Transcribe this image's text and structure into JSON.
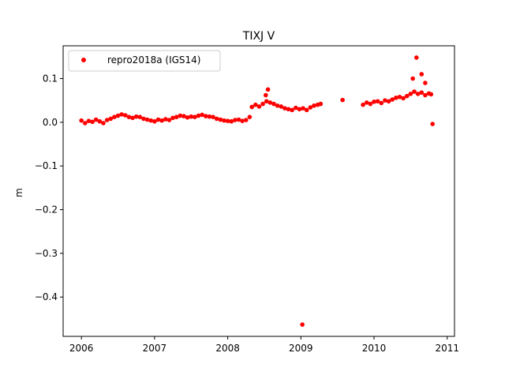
{
  "chart_data": {
    "type": "scatter",
    "title": "TIXJ V",
    "xlabel": "",
    "ylabel": "m",
    "xlim": [
      2005.75,
      2011.1
    ],
    "ylim": [
      -0.49,
      0.175
    ],
    "xticks": [
      2006,
      2007,
      2008,
      2009,
      2010,
      2011
    ],
    "xtick_labels": [
      "2006",
      "2007",
      "2008",
      "2009",
      "2010",
      "2011"
    ],
    "yticks": [
      0.1,
      0.0,
      -0.1,
      -0.2,
      -0.3,
      -0.4
    ],
    "ytick_labels": [
      "0.1",
      "0.0",
      "−0.1",
      "−0.2",
      "−0.3",
      "−0.4"
    ],
    "grid": false,
    "legend_position": "upper-left",
    "series": [
      {
        "name": "repro2018a (IGS14)",
        "color": "#ff0000",
        "marker": "circle",
        "points": [
          [
            2006.0,
            0.004
          ],
          [
            2006.05,
            -0.002
          ],
          [
            2006.1,
            0.003
          ],
          [
            2006.15,
            0.001
          ],
          [
            2006.2,
            0.006
          ],
          [
            2006.25,
            0.002
          ],
          [
            2006.3,
            -0.002
          ],
          [
            2006.35,
            0.005
          ],
          [
            2006.4,
            0.008
          ],
          [
            2006.45,
            0.012
          ],
          [
            2006.5,
            0.015
          ],
          [
            2006.55,
            0.018
          ],
          [
            2006.6,
            0.016
          ],
          [
            2006.65,
            0.012
          ],
          [
            2006.7,
            0.01
          ],
          [
            2006.75,
            0.013
          ],
          [
            2006.8,
            0.012
          ],
          [
            2006.85,
            0.008
          ],
          [
            2006.9,
            0.006
          ],
          [
            2006.95,
            0.004
          ],
          [
            2007.0,
            0.002
          ],
          [
            2007.05,
            0.006
          ],
          [
            2007.1,
            0.004
          ],
          [
            2007.15,
            0.007
          ],
          [
            2007.2,
            0.005
          ],
          [
            2007.25,
            0.01
          ],
          [
            2007.3,
            0.012
          ],
          [
            2007.35,
            0.015
          ],
          [
            2007.4,
            0.014
          ],
          [
            2007.45,
            0.011
          ],
          [
            2007.5,
            0.013
          ],
          [
            2007.55,
            0.012
          ],
          [
            2007.6,
            0.015
          ],
          [
            2007.65,
            0.017
          ],
          [
            2007.7,
            0.014
          ],
          [
            2007.75,
            0.013
          ],
          [
            2007.8,
            0.012
          ],
          [
            2007.85,
            0.008
          ],
          [
            2007.9,
            0.006
          ],
          [
            2007.95,
            0.004
          ],
          [
            2008.0,
            0.003
          ],
          [
            2008.05,
            0.002
          ],
          [
            2008.1,
            0.005
          ],
          [
            2008.15,
            0.006
          ],
          [
            2008.2,
            0.003
          ],
          [
            2008.25,
            0.005
          ],
          [
            2008.3,
            0.012
          ],
          [
            2008.33,
            0.035
          ],
          [
            2008.38,
            0.04
          ],
          [
            2008.43,
            0.036
          ],
          [
            2008.48,
            0.042
          ],
          [
            2008.53,
            0.048
          ],
          [
            2008.58,
            0.045
          ],
          [
            2008.63,
            0.042
          ],
          [
            2008.68,
            0.038
          ],
          [
            2008.73,
            0.036
          ],
          [
            2008.78,
            0.032
          ],
          [
            2008.83,
            0.03
          ],
          [
            2008.88,
            0.028
          ],
          [
            2008.93,
            0.033
          ],
          [
            2008.98,
            0.03
          ],
          [
            2009.03,
            0.032
          ],
          [
            2009.08,
            0.028
          ],
          [
            2009.13,
            0.034
          ],
          [
            2009.18,
            0.038
          ],
          [
            2009.23,
            0.04
          ],
          [
            2009.27,
            0.042
          ],
          [
            2008.55,
            0.075
          ],
          [
            2008.52,
            0.062
          ],
          [
            2009.02,
            -0.463
          ],
          [
            2009.57,
            0.051
          ],
          [
            2009.85,
            0.04
          ],
          [
            2009.9,
            0.045
          ],
          [
            2009.95,
            0.042
          ],
          [
            2010.0,
            0.047
          ],
          [
            2010.05,
            0.048
          ],
          [
            2010.1,
            0.044
          ],
          [
            2010.15,
            0.05
          ],
          [
            2010.2,
            0.048
          ],
          [
            2010.25,
            0.052
          ],
          [
            2010.3,
            0.056
          ],
          [
            2010.35,
            0.058
          ],
          [
            2010.4,
            0.055
          ],
          [
            2010.45,
            0.06
          ],
          [
            2010.5,
            0.065
          ],
          [
            2010.55,
            0.07
          ],
          [
            2010.6,
            0.065
          ],
          [
            2010.65,
            0.068
          ],
          [
            2010.7,
            0.062
          ],
          [
            2010.75,
            0.066
          ],
          [
            2010.78,
            0.064
          ],
          [
            2010.53,
            0.1
          ],
          [
            2010.58,
            0.148
          ],
          [
            2010.65,
            0.11
          ],
          [
            2010.7,
            0.09
          ],
          [
            2010.8,
            -0.004
          ]
        ]
      }
    ]
  }
}
